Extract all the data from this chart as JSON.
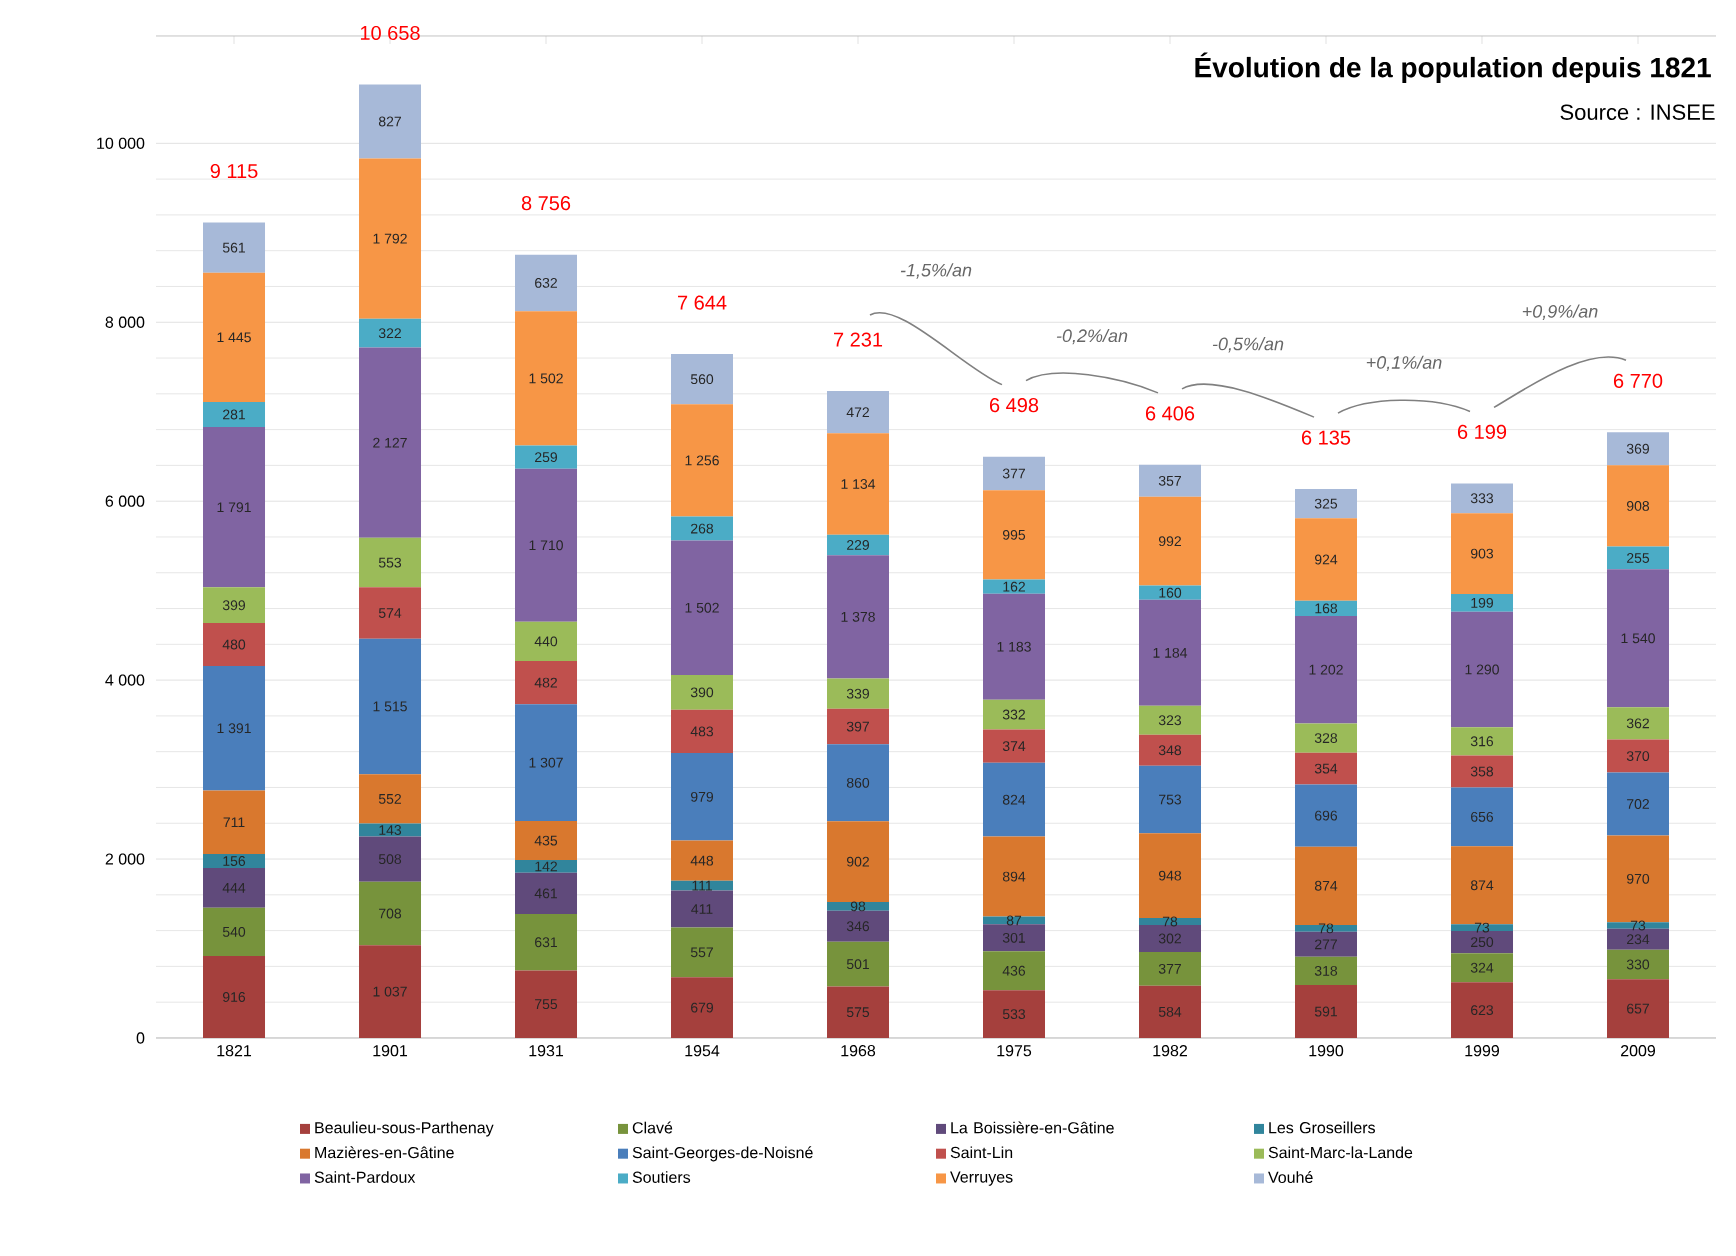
{
  "chart_data": {
    "type": "bar",
    "stacked": true,
    "title": "Évolution de la population depuis 1821",
    "annotations": [
      "Source : INSEE",
      "-1,5%/an",
      "-0,2%/an",
      "-0,5%/an",
      "+0,1%/an",
      "+0,9%/an"
    ],
    "categories": [
      "1821",
      "1901",
      "1931",
      "1954",
      "1968",
      "1975",
      "1982",
      "1990",
      "1999",
      "2009"
    ],
    "ylim": [
      0,
      11200
    ],
    "yticks": [
      {
        "value": 0,
        "label": "0"
      },
      {
        "value": 2000,
        "label": "2 000"
      },
      {
        "value": 4000,
        "label": "4 000"
      },
      {
        "value": 6000,
        "label": "6 000"
      },
      {
        "value": 8000,
        "label": "8 000"
      },
      {
        "value": 10000,
        "label": "10 000"
      }
    ],
    "grid": true,
    "legend": "bottom",
    "totals": [
      "9 115",
      "10 658",
      "8 756",
      "7 644",
      "7 231",
      "6 498",
      "6 406",
      "6 135",
      "6 199",
      "6 770"
    ],
    "series": [
      {
        "name": "Beaulieu-sous-Parthenay",
        "color": "#a5403d",
        "values": [
          916,
          1037,
          755,
          679,
          575,
          533,
          584,
          591,
          623,
          657
        ],
        "value_labels": [
          "916",
          "1 037",
          "755",
          "679",
          "575",
          "533",
          "584",
          "591",
          "623",
          "657"
        ]
      },
      {
        "name": "Clavé",
        "color": "#77933c",
        "values": [
          540,
          708,
          631,
          557,
          501,
          436,
          377,
          318,
          324,
          330
        ],
        "value_labels": [
          "540",
          "708",
          "631",
          "557",
          "501",
          "436",
          "377",
          "318",
          "324",
          "330"
        ]
      },
      {
        "name": "La Boissière-en-Gâtine",
        "color": "#604a7b",
        "values": [
          444,
          508,
          461,
          411,
          346,
          301,
          302,
          277,
          250,
          234
        ],
        "value_labels": [
          "444",
          "508",
          "461",
          "411",
          "346",
          "301",
          "302",
          "277",
          "250",
          "234"
        ]
      },
      {
        "name": "Les Groseillers",
        "color": "#31859c",
        "values": [
          156,
          143,
          142,
          111,
          98,
          87,
          78,
          78,
          73,
          73
        ],
        "value_labels": [
          "156",
          "143",
          "142",
          "111",
          "98",
          "87",
          "78",
          "78",
          "73",
          "73"
        ]
      },
      {
        "name": "Mazières-en-Gâtine",
        "color": "#d9782e",
        "values": [
          711,
          552,
          435,
          448,
          902,
          894,
          948,
          874,
          874,
          970
        ],
        "value_labels": [
          "711",
          "552",
          "435",
          "448",
          "902",
          "894",
          "948",
          "874",
          "874",
          "970"
        ]
      },
      {
        "name": "Saint-Georges-de-Noisné",
        "color": "#4a7ebb",
        "values": [
          1391,
          1515,
          1307,
          979,
          860,
          824,
          753,
          696,
          656,
          702
        ],
        "value_labels": [
          "1 391",
          "1 515",
          "1 307",
          "979",
          "860",
          "824",
          "753",
          "696",
          "656",
          "702"
        ]
      },
      {
        "name": "Saint-Lin",
        "color": "#c0504d",
        "values": [
          480,
          574,
          482,
          483,
          397,
          374,
          348,
          354,
          358,
          370
        ],
        "value_labels": [
          "480",
          "574",
          "482",
          "483",
          "397",
          "374",
          "348",
          "354",
          "358",
          "370"
        ]
      },
      {
        "name": "Saint-Marc-la-Lande",
        "color": "#9bbb59",
        "values": [
          399,
          553,
          440,
          390,
          339,
          332,
          323,
          328,
          316,
          362
        ],
        "value_labels": [
          "399",
          "553",
          "440",
          "390",
          "339",
          "332",
          "323",
          "328",
          "316",
          "362"
        ]
      },
      {
        "name": "Saint-Pardoux",
        "color": "#8064a2",
        "values": [
          1791,
          2127,
          1710,
          1502,
          1378,
          1183,
          1184,
          1202,
          1290,
          1540
        ],
        "value_labels": [
          "1 791",
          "2 127",
          "1 710",
          "1 502",
          "1 378",
          "1 183",
          "1 184",
          "1 202",
          "1 290",
          "1 540"
        ]
      },
      {
        "name": "Soutiers",
        "color": "#4bacc6",
        "values": [
          281,
          322,
          259,
          268,
          229,
          162,
          160,
          168,
          199,
          255
        ],
        "value_labels": [
          "281",
          "322",
          "259",
          "268",
          "229",
          "162",
          "160",
          "168",
          "199",
          "255"
        ]
      },
      {
        "name": "Verruyes",
        "color": "#f79646",
        "values": [
          1445,
          1792,
          1502,
          1256,
          1134,
          995,
          992,
          924,
          903,
          908
        ],
        "value_labels": [
          "1 445",
          "1 792",
          "1 502",
          "1 256",
          "1 134",
          "995",
          "992",
          "924",
          "903",
          "908"
        ]
      },
      {
        "name": "Vouhé",
        "color": "#a7b9d8",
        "values": [
          561,
          827,
          632,
          560,
          472,
          377,
          357,
          325,
          333,
          369
        ],
        "value_labels": [
          "561",
          "827",
          "632",
          "560",
          "472",
          "377",
          "357",
          "325",
          "333",
          "369"
        ]
      }
    ]
  }
}
